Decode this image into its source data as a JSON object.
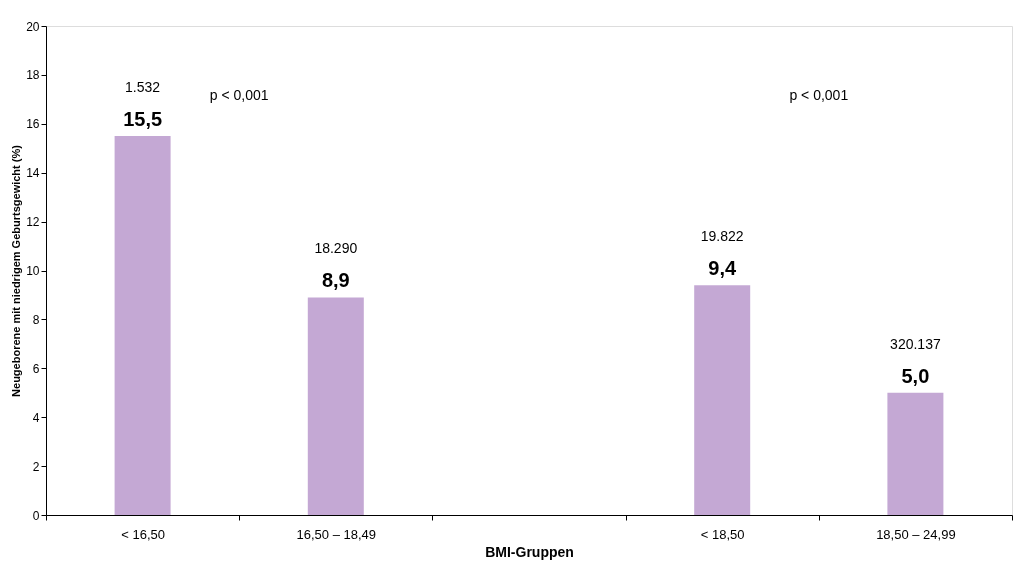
{
  "chart_data": {
    "type": "bar",
    "xlabel": "BMI-Gruppen",
    "ylabel": "Neugeborene mit niedrigem Geburtsgewicht (%)",
    "categories": [
      "< 16,50",
      "16,50 – 18,49",
      null,
      "< 18,50",
      "18,50 – 24,99"
    ],
    "values": [
      15.5,
      8.9,
      null,
      9.4,
      5.0
    ],
    "value_labels": [
      "15,5",
      "8,9",
      null,
      "9,4",
      "5,0"
    ],
    "color": "#c4a8d4",
    "ylim": [
      0,
      20
    ],
    "yticks": [
      0,
      2,
      4,
      6,
      8,
      10,
      12,
      14,
      16,
      18,
      20
    ],
    "annotations": [
      "1.532",
      "18.290",
      "19.822",
      "320.137",
      "p < 0,001",
      "p < 0,001"
    ]
  }
}
